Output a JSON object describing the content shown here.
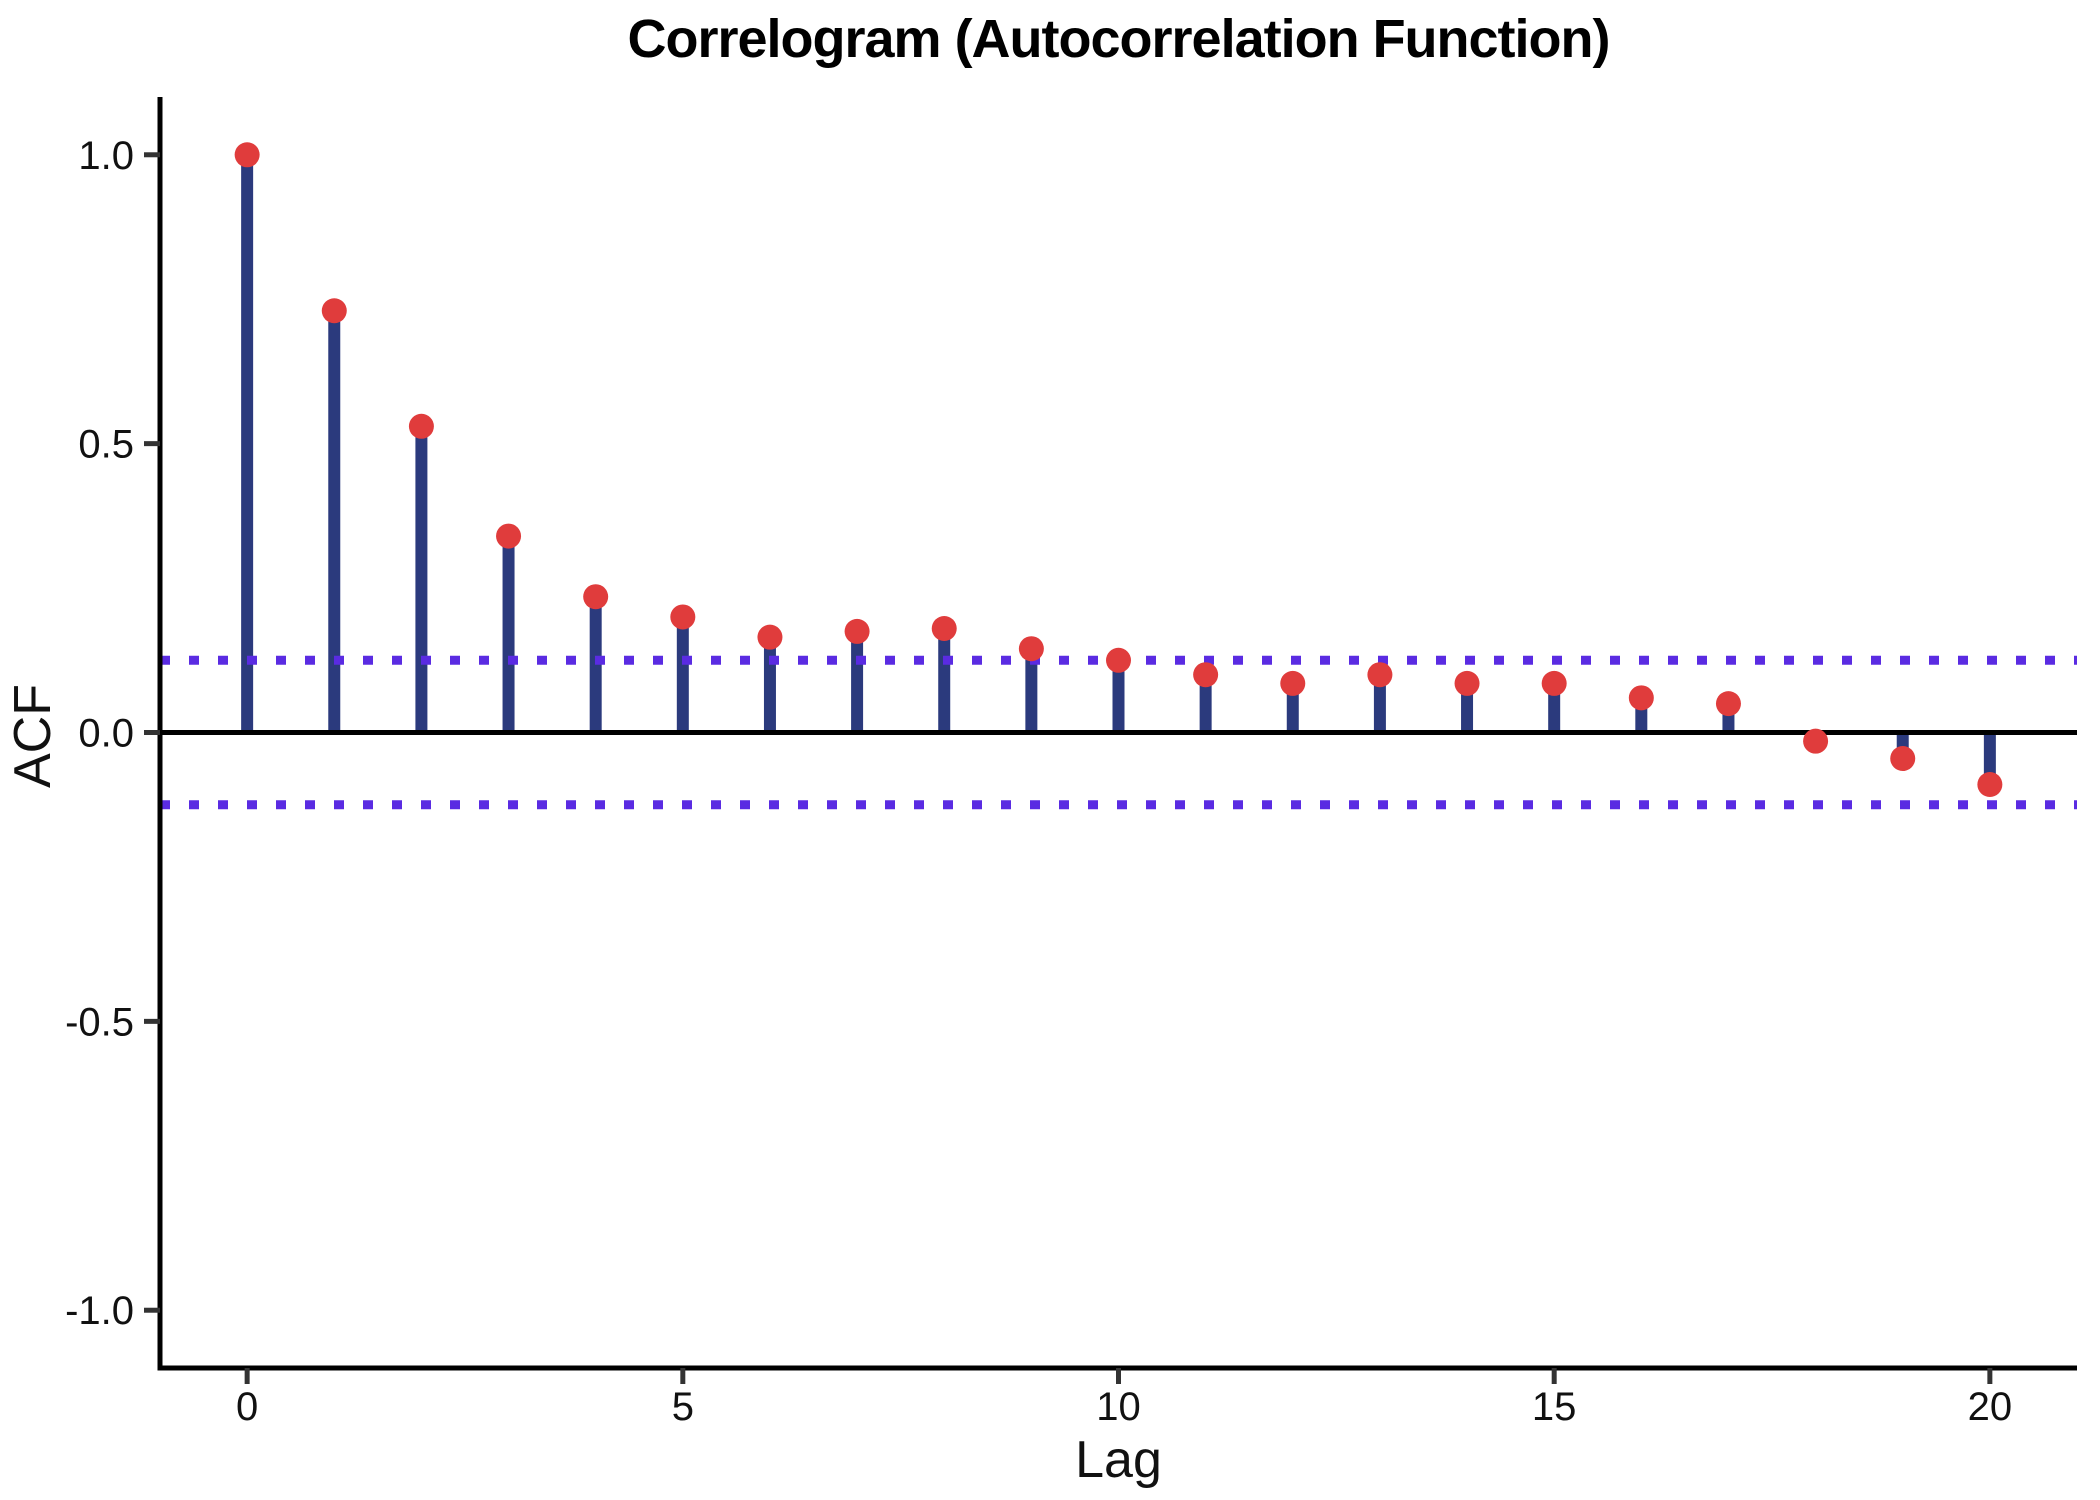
{
  "title": "Correlogram (Autocorrelation Function)",
  "chart_data": {
    "type": "stem",
    "title": "Correlogram (Autocorrelation Function)",
    "xlabel": "Lag",
    "ylabel": "ACF",
    "x": [
      0,
      1,
      2,
      3,
      4,
      5,
      6,
      7,
      8,
      9,
      10,
      11,
      12,
      13,
      14,
      15,
      16,
      17,
      18,
      19,
      20
    ],
    "values": [
      1.0,
      0.73,
      0.53,
      0.34,
      0.235,
      0.2,
      0.165,
      0.175,
      0.18,
      0.145,
      0.125,
      0.1,
      0.085,
      0.1,
      0.085,
      0.085,
      0.06,
      0.05,
      -0.015,
      -0.045,
      -0.09
    ],
    "x_ticks": [
      0,
      5,
      10,
      15,
      20
    ],
    "x_tick_labels": [
      "0",
      "5",
      "10",
      "15",
      "20"
    ],
    "y_ticks": [
      1.0,
      0.5,
      0.0,
      -0.5,
      -1.0
    ],
    "y_tick_labels": [
      "1.0",
      "0.5",
      "0.0",
      "-0.5",
      "-1.0"
    ],
    "xlim": [
      -1,
      21
    ],
    "ylim": [
      -1.1,
      1.1
    ],
    "zero_line": 0,
    "confidence_bounds": {
      "upper": 0.125,
      "lower": -0.125,
      "line_style": "dotted"
    },
    "grid": false,
    "legend": null,
    "colors": {
      "stem": "#2B3A7D",
      "point": "#E03C3C",
      "confidence_line": "#5A2BE2",
      "zero_line": "#000000",
      "axis_line": "#000000",
      "tick_mark": "#333333",
      "tick_text": "#111111"
    }
  }
}
